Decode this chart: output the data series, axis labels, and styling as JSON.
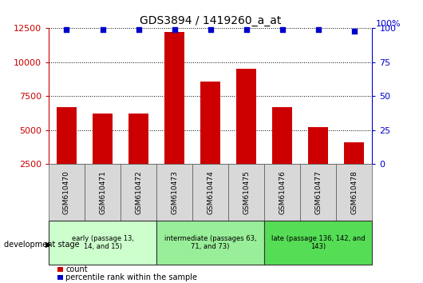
{
  "title": "GDS3894 / 1419260_a_at",
  "samples": [
    "GSM610470",
    "GSM610471",
    "GSM610472",
    "GSM610473",
    "GSM610474",
    "GSM610475",
    "GSM610476",
    "GSM610477",
    "GSM610478"
  ],
  "counts": [
    6700,
    6200,
    6200,
    12200,
    8600,
    9500,
    6700,
    5200,
    4100
  ],
  "percentile_ranks": [
    99,
    99,
    99,
    99,
    99,
    99,
    99,
    99,
    98
  ],
  "ylim_left": [
    2500,
    12500
  ],
  "ylim_right": [
    0,
    100
  ],
  "yticks_left": [
    2500,
    5000,
    7500,
    10000,
    12500
  ],
  "yticks_right": [
    0,
    25,
    50,
    75,
    100
  ],
  "bar_color": "#cc0000",
  "dot_color": "#0000cc",
  "background_color": "#ffffff",
  "groups": [
    {
      "label": "early (passage 13,\n14, and 15)",
      "samples": [
        0,
        1,
        2
      ],
      "color": "#ccffcc"
    },
    {
      "label": "intermediate (passages 63,\n71, and 73)",
      "samples": [
        3,
        4,
        5
      ],
      "color": "#99ee99"
    },
    {
      "label": "late (passage 136, 142, and\n143)",
      "samples": [
        6,
        7,
        8
      ],
      "color": "#55dd55"
    }
  ],
  "dev_stage_label": "development stage",
  "legend_count_label": "count",
  "legend_percentile_label": "percentile rank within the sample",
  "tick_label_color_left": "#cc0000",
  "tick_label_color_right": "#0000cc",
  "cell_bg": "#d8d8d8"
}
